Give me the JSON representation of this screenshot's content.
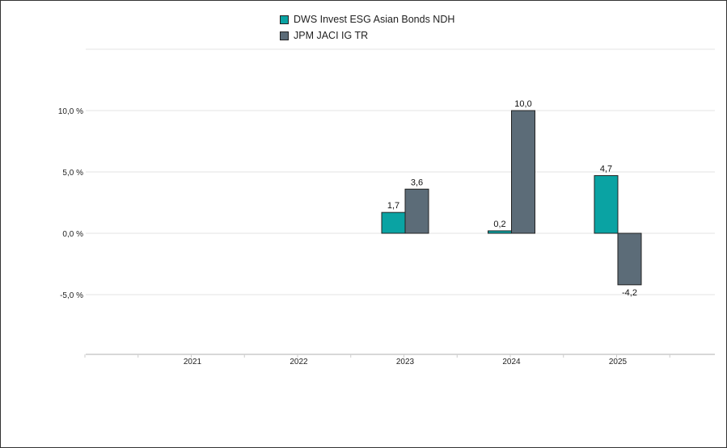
{
  "chart_data": {
    "type": "bar",
    "categories": [
      "2021",
      "2022",
      "2023",
      "2024",
      "2025"
    ],
    "series": [
      {
        "name": "DWS Invest ESG Asian Bonds NDH",
        "color": "#0aa3a3",
        "values": [
          null,
          null,
          1.7,
          0.2,
          4.7
        ],
        "labels": [
          "",
          "",
          "1,7",
          "0,2",
          "4,7"
        ]
      },
      {
        "name": "JPM JACI IG TR",
        "color": "#5c6c78",
        "values": [
          null,
          null,
          3.6,
          10.0,
          -4.2
        ],
        "labels": [
          "",
          "",
          "3,6",
          "10,0",
          "-4,2"
        ]
      }
    ],
    "yticks": [
      10,
      5,
      0,
      -5
    ],
    "ytick_labels": [
      "10,0 %",
      "5,0 %",
      "0,0 %",
      "-5,0 %"
    ],
    "ylim": [
      -9.9,
      15
    ],
    "grid": true,
    "legend_position": "top-center",
    "xlabel": "",
    "ylabel": ""
  }
}
